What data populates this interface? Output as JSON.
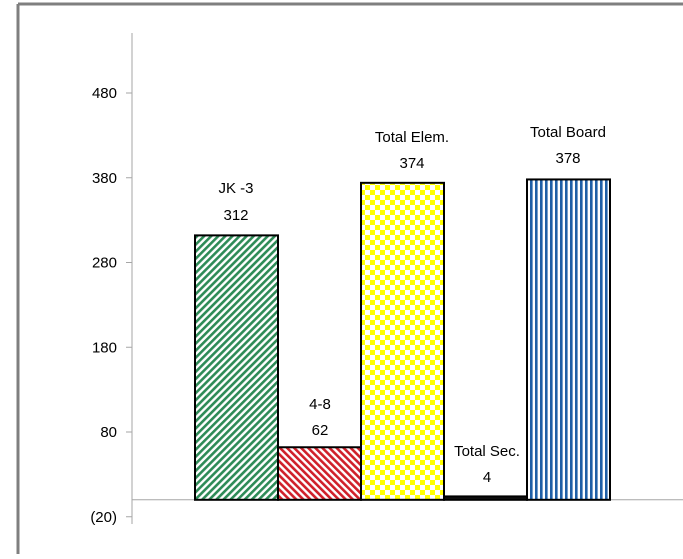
{
  "chart_data": {
    "type": "bar",
    "categories": [
      "JK -3",
      "4-8",
      "Total Elem.",
      "Total Sec.",
      "Total Board"
    ],
    "values": [
      312,
      62,
      374,
      4,
      378
    ],
    "y_ticks": [
      -20,
      80,
      180,
      280,
      380,
      480
    ],
    "y_tick_labels": [
      "(20)",
      "80",
      "180",
      "280",
      "380",
      "480"
    ],
    "ylim": [
      -20,
      540
    ],
    "title": "",
    "xlabel": "",
    "ylabel": "",
    "grid": false,
    "legend": "none",
    "data_labels": true,
    "patterns": [
      "diagonal-green",
      "diagonal-red",
      "checker-yellow",
      "solid-black",
      "vertical-blue"
    ],
    "colors": {
      "green": "#2e8b57",
      "red": "#d0202a",
      "yellow": "#ffff00",
      "black": "#111111",
      "blue": "#1f5fa6",
      "frame": "#7f7f7f",
      "axis": "#a6a6a6"
    }
  }
}
